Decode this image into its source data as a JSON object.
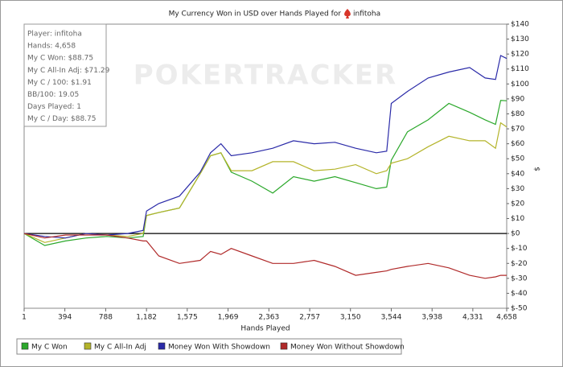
{
  "chart_data": {
    "type": "line",
    "title": "My Currency Won in USD over Hands Played for",
    "title_player": "infitoha",
    "watermark": "POKERTRACKER",
    "xlabel": "Hands Played",
    "ylabel": "$",
    "info_box": [
      "Player: infitoha",
      "Hands: 4,658",
      "My C Won: $88.75",
      "My C All-In Adj: $71.29",
      "My C / 100: $1.91",
      "BB/100: 19.05",
      "Days Played: 1",
      "My C / Day: $88.75"
    ],
    "x": [
      1,
      200,
      400,
      600,
      800,
      1000,
      1150,
      1182,
      1300,
      1500,
      1700,
      1800,
      1900,
      2000,
      2200,
      2400,
      2600,
      2800,
      3000,
      3200,
      3400,
      3500,
      3544,
      3700,
      3900,
      4100,
      4300,
      4450,
      4550,
      4600,
      4658
    ],
    "series": [
      {
        "name": "My C Won",
        "color": "#2ba82b",
        "values": [
          0,
          -8,
          -5,
          -3,
          -2,
          -3,
          -2,
          12,
          14,
          17,
          40,
          52,
          54,
          41,
          35,
          27,
          38,
          35,
          38,
          34,
          30,
          31,
          49,
          68,
          76,
          87,
          81,
          76,
          73,
          89,
          88.75
        ]
      },
      {
        "name": "My C All-In Adj",
        "color": "#b4b42a",
        "values": [
          0,
          -6,
          -3,
          0,
          -1,
          -2,
          0,
          12,
          14,
          17,
          40,
          52,
          54,
          42,
          42,
          48,
          48,
          42,
          43,
          46,
          40,
          42,
          47,
          50,
          58,
          65,
          62,
          62,
          57,
          74,
          71.29
        ]
      },
      {
        "name": "Money Won With Showdown",
        "color": "#2a2aa8",
        "values": [
          0,
          -2,
          -3,
          0,
          -1,
          0,
          2,
          15,
          20,
          25,
          41,
          54,
          60,
          52,
          54,
          57,
          62,
          60,
          61,
          57,
          54,
          55,
          87,
          95,
          104,
          108,
          111,
          104,
          103,
          119,
          117
        ]
      },
      {
        "name": "Money Won Without Showdown",
        "color": "#b02a2a",
        "values": [
          0,
          -3,
          -1,
          -1,
          -1,
          -3,
          -5,
          -5,
          -15,
          -20,
          -18,
          -12,
          -14,
          -10,
          -15,
          -20,
          -20,
          -18,
          -22,
          -28,
          -26,
          -25,
          -24,
          -22,
          -20,
          -23,
          -28,
          -30,
          -29,
          -28,
          -28
        ]
      }
    ],
    "xlim": [
      1,
      4658
    ],
    "xticks": [
      1,
      394,
      788,
      {
        "value": 1182,
        "label": "1,182"
      },
      {
        "value": 1575,
        "label": "1,575"
      },
      {
        "value": 1969,
        "label": "1,969"
      },
      {
        "value": 2363,
        "label": "2,363"
      },
      {
        "value": 2757,
        "label": "2,757"
      },
      {
        "value": 3150,
        "label": "3,150"
      },
      {
        "value": 3544,
        "label": "3,544"
      },
      {
        "value": 3938,
        "label": "3,938"
      },
      {
        "value": 4331,
        "label": "4,331"
      },
      {
        "value": 4658,
        "label": "4,658"
      }
    ],
    "ylim": [
      -50,
      140
    ],
    "yticks": [
      {
        "value": -50,
        "label": "$-50"
      },
      {
        "value": -40,
        "label": "$-40"
      },
      {
        "value": -30,
        "label": "$-30"
      },
      {
        "value": -20,
        "label": "$-20"
      },
      {
        "value": -10,
        "label": "$-10"
      },
      {
        "value": 0,
        "label": "$0"
      },
      {
        "value": 10,
        "label": "$10"
      },
      {
        "value": 20,
        "label": "$20"
      },
      {
        "value": 30,
        "label": "$30"
      },
      {
        "value": 40,
        "label": "$40"
      },
      {
        "value": 50,
        "label": "$50"
      },
      {
        "value": 60,
        "label": "$60"
      },
      {
        "value": 70,
        "label": "$70"
      },
      {
        "value": 80,
        "label": "$80"
      },
      {
        "value": 90,
        "label": "$90"
      },
      {
        "value": 100,
        "label": "$100"
      },
      {
        "value": 110,
        "label": "$110"
      },
      {
        "value": 120,
        "label": "$120"
      },
      {
        "value": 130,
        "label": "$130"
      },
      {
        "value": 140,
        "label": "$140"
      }
    ],
    "grid": false,
    "legend": "bottom"
  }
}
